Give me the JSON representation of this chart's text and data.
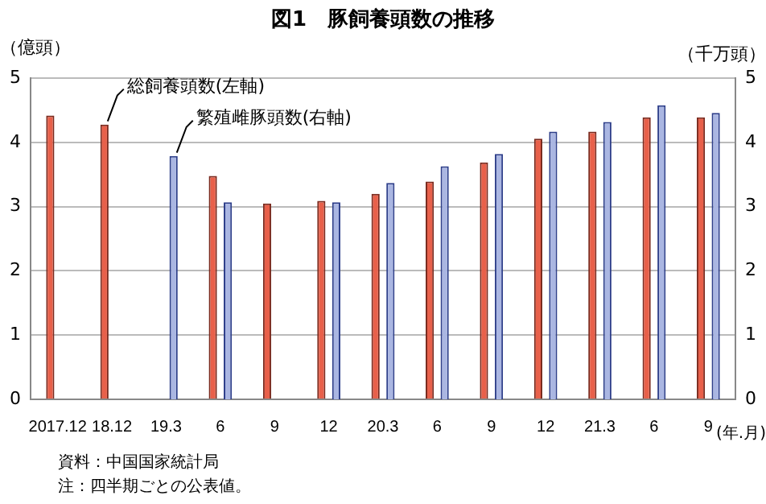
{
  "chart_data": {
    "type": "bar",
    "title": "図1　豚飼養頭数の推移",
    "ylabel": "（億頭）",
    "y2label": "（千万頭）",
    "xlabel": "(年.月)",
    "categories": [
      "2017.12",
      "18.12",
      "19.3",
      "6",
      "9",
      "12",
      "20.3",
      "6",
      "9",
      "12",
      "21.3",
      "6",
      "9"
    ],
    "series": [
      {
        "name": "総飼養頭数(左軸)",
        "color": "#e8604a",
        "values": [
          4.42,
          4.28,
          null,
          3.48,
          3.05,
          3.09,
          3.2,
          3.39,
          3.69,
          4.06,
          4.17,
          4.39,
          4.39
        ]
      },
      {
        "name": "繁殖雌豚頭数(右軸)",
        "color": "#aab6e2",
        "axis": "y2",
        "values": [
          null,
          null,
          3.79,
          3.07,
          null,
          3.07,
          3.37,
          3.63,
          3.82,
          4.17,
          4.32,
          4.58,
          4.46
        ]
      }
    ],
    "ylim": [
      0,
      5
    ],
    "yticks": [
      0,
      1,
      2,
      3,
      4,
      5
    ],
    "y2lim": [
      0,
      5
    ],
    "y2ticks": [
      0,
      1,
      2,
      3,
      4,
      5
    ],
    "grid": "y",
    "legend": false,
    "annotations": [
      "資料：中国国家統計局",
      "注：四半期ごとの公表値。"
    ]
  }
}
